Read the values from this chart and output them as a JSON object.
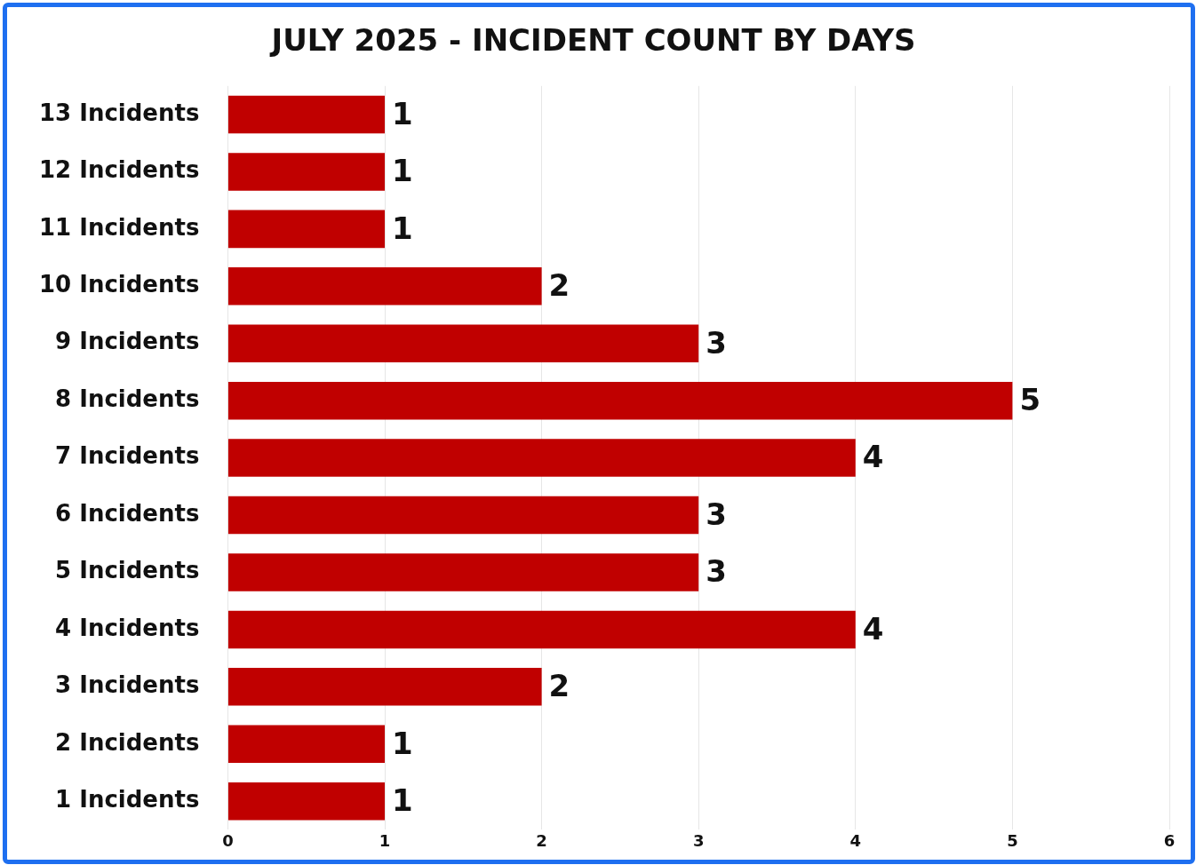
{
  "chart_data": {
    "type": "bar",
    "title": "JULY 2025 - INCIDENT COUNT BY DAYS",
    "orientation": "horizontal",
    "categories": [
      "13 Incidents",
      "12 Incidents",
      "11 Incidents",
      "10 Incidents",
      "9 Incidents",
      "8 Incidents",
      "7 Incidents",
      "6 Incidents",
      "5 Incidents",
      "4 Incidents",
      "3 Incidents",
      "2 Incidents",
      "1 Incidents"
    ],
    "values": [
      1,
      1,
      1,
      2,
      3,
      5,
      4,
      3,
      3,
      4,
      2,
      1,
      1
    ],
    "color": "#c00000",
    "xlim": [
      0,
      6
    ],
    "xticks": [
      0,
      1,
      2,
      3,
      4,
      5,
      6
    ],
    "grid": "x",
    "legend": false,
    "data_labels": true
  }
}
